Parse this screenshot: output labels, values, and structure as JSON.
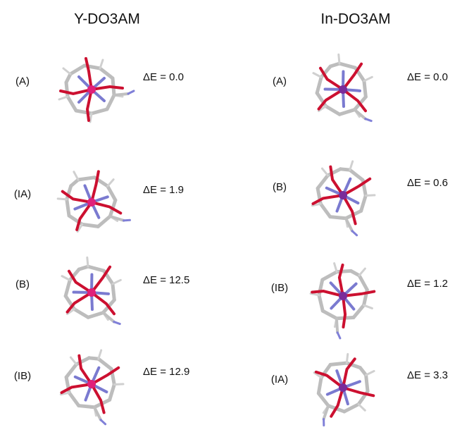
{
  "columns": [
    {
      "title": "Y-DO3AM",
      "rows": [
        {
          "label": "(A)",
          "energy": "ΔE = 0.0"
        },
        {
          "label": "(IA)",
          "energy": "ΔE = 1.9"
        },
        {
          "label": "(B)",
          "energy": "ΔE = 12.5"
        },
        {
          "label": "(IB)",
          "energy": "ΔE = 12.9"
        }
      ]
    },
    {
      "title": "In-DO3AM",
      "rows": [
        {
          "label": "(A)",
          "energy": "ΔE = 0.0"
        },
        {
          "label": "(B)",
          "energy": "ΔE = 0.6"
        },
        {
          "label": "(IB)",
          "energy": "ΔE = 1.2"
        },
        {
          "label": "(IA)",
          "energy": "ΔE = 3.3"
        }
      ]
    }
  ]
}
